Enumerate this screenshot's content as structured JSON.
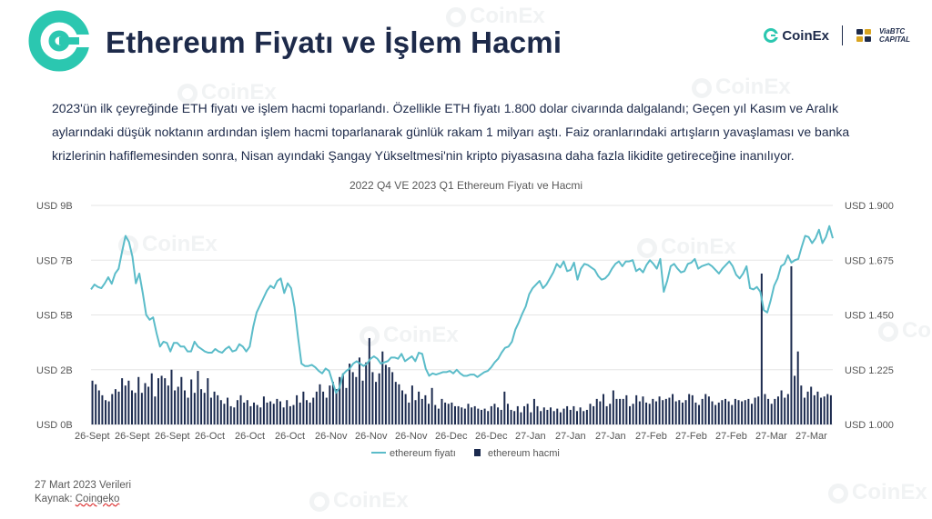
{
  "header": {
    "title": "Ethereum Fiyatı ve İşlem Hacmi",
    "brand_coinex": "CoinEx",
    "brand_viabtc": "ViaBTC CAPITAL"
  },
  "description": "2023'ün ilk çeyreğinde ETH fiyatı ve işlem hacmi toparlandı. Özellikle ETH fiyatı 1.800 dolar civarında dalgalandı; Geçen yıl Kasım ve Aralık aylarındaki düşük noktanın ardından işlem hacmi toparlanarak günlük rakam 1 milyarı aştı. Faiz oranlarındaki artışların yavaşlaması ve banka krizlerinin hafiflemesinden sonra, Nisan ayındaki Şangay Yükseltmesi'nin kripto piyasasına daha fazla likidite getireceğine inanılıyor.",
  "footer": {
    "date": "27 Mart 2023 Verileri",
    "source_label": "Kaynak: ",
    "source_name": "Coingeko"
  },
  "watermark_text": "CoinEx",
  "colors": {
    "price_line": "#5bbcc9",
    "volume_bar": "#1b2a4e",
    "title": "#1d2a4a",
    "brand_teal": "#2bc7b0"
  },
  "chart_data": {
    "type": "bar+line",
    "title": "2022 Q4 VE 2023 Q1 Ethereum Fiyatı ve Hacmi",
    "x_tick_labels": [
      "26-Sept",
      "26-Sept",
      "26-Sept",
      "26-Oct",
      "26-Oct",
      "26-Oct",
      "26-Nov",
      "26-Nov",
      "26-Nov",
      "26-Dec",
      "26-Dec",
      "27-Jan",
      "27-Jan",
      "27-Jan",
      "27-Feb",
      "27-Feb",
      "27-Feb",
      "27-Mar",
      "27-Mar"
    ],
    "y_left": {
      "ticks": [
        "USD 0B",
        "USD 2B",
        "USD 5B",
        "USD 7B",
        "USD 9B"
      ],
      "ylim": [
        0,
        9
      ]
    },
    "y_right": {
      "ticks": [
        "USD 1.000",
        "USD 1.225",
        "USD 1.450",
        "USD 1.675",
        "USD 1.900"
      ],
      "ylim": [
        1000,
        1900
      ]
    },
    "legend": {
      "position": "bottom",
      "price": "ethereum fiyatı",
      "volume": "ethereum hacmi"
    },
    "series": [
      {
        "name": "ethereum fiyatı",
        "axis": "right",
        "type": "line",
        "values": [
          1555,
          1575,
          1565,
          1560,
          1580,
          1605,
          1578,
          1620,
          1640,
          1710,
          1775,
          1750,
          1690,
          1580,
          1620,
          1540,
          1450,
          1430,
          1440,
          1375,
          1320,
          1340,
          1335,
          1300,
          1335,
          1335,
          1320,
          1320,
          1300,
          1300,
          1340,
          1320,
          1310,
          1300,
          1295,
          1295,
          1310,
          1300,
          1295,
          1310,
          1320,
          1300,
          1305,
          1330,
          1320,
          1300,
          1320,
          1400,
          1460,
          1490,
          1520,
          1550,
          1570,
          1560,
          1590,
          1600,
          1540,
          1580,
          1560,
          1480,
          1360,
          1250,
          1240,
          1240,
          1245,
          1235,
          1220,
          1210,
          1230,
          1220,
          1175,
          1130,
          1150,
          1205,
          1220,
          1230,
          1250,
          1260,
          1250,
          1240,
          1250,
          1270,
          1280,
          1270,
          1250,
          1255,
          1260,
          1275,
          1275,
          1270,
          1290,
          1260,
          1270,
          1280,
          1260,
          1295,
          1290,
          1230,
          1200,
          1210,
          1205,
          1210,
          1215,
          1215,
          1220,
          1210,
          1225,
          1210,
          1200,
          1200,
          1205,
          1205,
          1195,
          1205,
          1215,
          1220,
          1235,
          1255,
          1270,
          1295,
          1315,
          1320,
          1340,
          1390,
          1420,
          1455,
          1485,
          1535,
          1560,
          1575,
          1590,
          1560,
          1575,
          1600,
          1625,
          1660,
          1645,
          1670,
          1630,
          1635,
          1665,
          1595,
          1640,
          1660,
          1655,
          1645,
          1635,
          1610,
          1595,
          1600,
          1615,
          1640,
          1660,
          1670,
          1650,
          1670,
          1670,
          1675,
          1630,
          1640,
          1625,
          1655,
          1675,
          1660,
          1640,
          1680,
          1545,
          1590,
          1650,
          1660,
          1640,
          1625,
          1630,
          1660,
          1665,
          1680,
          1640,
          1650,
          1655,
          1660,
          1650,
          1635,
          1620,
          1640,
          1655,
          1670,
          1650,
          1615,
          1600,
          1620,
          1650,
          1560,
          1555,
          1565,
          1545,
          1470,
          1460,
          1510,
          1570,
          1600,
          1650,
          1660,
          1695,
          1665,
          1675,
          1680,
          1730,
          1775,
          1770,
          1745,
          1765,
          1800,
          1745,
          1770,
          1815,
          1765
        ]
      },
      {
        "name": "ethereum hacmi",
        "axis": "left",
        "type": "bar",
        "values": [
          1.8,
          1.65,
          1.4,
          1.2,
          1.0,
          0.95,
          1.25,
          1.45,
          1.35,
          1.9,
          1.6,
          1.8,
          1.4,
          1.3,
          1.95,
          1.3,
          1.7,
          1.55,
          2.1,
          1.15,
          1.9,
          2.0,
          1.9,
          1.6,
          2.25,
          1.4,
          1.55,
          1.95,
          1.4,
          1.1,
          1.85,
          1.3,
          2.2,
          1.45,
          1.3,
          1.9,
          1.1,
          1.35,
          1.2,
          1.0,
          0.85,
          1.1,
          0.75,
          0.7,
          1.0,
          1.2,
          0.9,
          1.0,
          0.75,
          0.9,
          0.8,
          0.7,
          1.15,
          0.9,
          0.95,
          0.85,
          1.05,
          0.95,
          0.7,
          1.0,
          0.75,
          0.8,
          1.2,
          0.9,
          1.35,
          1.0,
          0.9,
          1.1,
          1.35,
          1.65,
          1.35,
          1.1,
          1.6,
          1.75,
          1.45,
          1.95,
          2.1,
          1.5,
          2.5,
          2.15,
          1.95,
          2.75,
          1.8,
          2.55,
          3.55,
          2.15,
          1.75,
          2.1,
          3.0,
          2.45,
          2.35,
          2.15,
          1.75,
          1.65,
          1.4,
          1.25,
          0.9,
          1.6,
          1.0,
          1.35,
          1.05,
          1.2,
          0.85,
          1.5,
          0.8,
          0.65,
          1.05,
          0.9,
          0.85,
          0.9,
          0.75,
          0.75,
          0.7,
          0.65,
          0.85,
          0.7,
          0.75,
          0.65,
          0.6,
          0.65,
          0.55,
          0.75,
          0.85,
          0.7,
          0.6,
          1.35,
          0.85,
          0.6,
          0.55,
          0.75,
          0.5,
          0.75,
          0.85,
          0.5,
          1.05,
          0.75,
          0.55,
          0.7,
          0.6,
          0.7,
          0.55,
          0.65,
          0.5,
          0.65,
          0.75,
          0.6,
          0.75,
          0.55,
          0.7,
          0.55,
          0.6,
          0.85,
          0.75,
          1.05,
          0.95,
          1.25,
          0.75,
          0.85,
          1.4,
          1.05,
          1.05,
          1.05,
          1.2,
          0.75,
          0.85,
          1.2,
          0.95,
          1.15,
          0.9,
          0.85,
          1.05,
          0.95,
          1.15,
          1.0,
          1.05,
          1.1,
          1.25,
          0.95,
          1.0,
          0.9,
          1.0,
          1.25,
          1.2,
          0.9,
          0.8,
          1.05,
          1.25,
          1.15,
          0.95,
          0.8,
          0.9,
          1.0,
          1.05,
          0.95,
          0.8,
          1.05,
          1.0,
          0.95,
          1.0,
          1.05,
          0.85,
          1.1,
          1.15,
          6.2,
          1.25,
          1.05,
          0.85,
          1.05,
          1.15,
          1.4,
          1.1,
          1.25,
          6.5,
          2.0,
          3.0,
          1.6,
          1.1,
          1.35,
          1.55,
          1.2,
          1.35,
          1.1,
          1.15,
          1.25,
          1.2
        ]
      }
    ]
  }
}
